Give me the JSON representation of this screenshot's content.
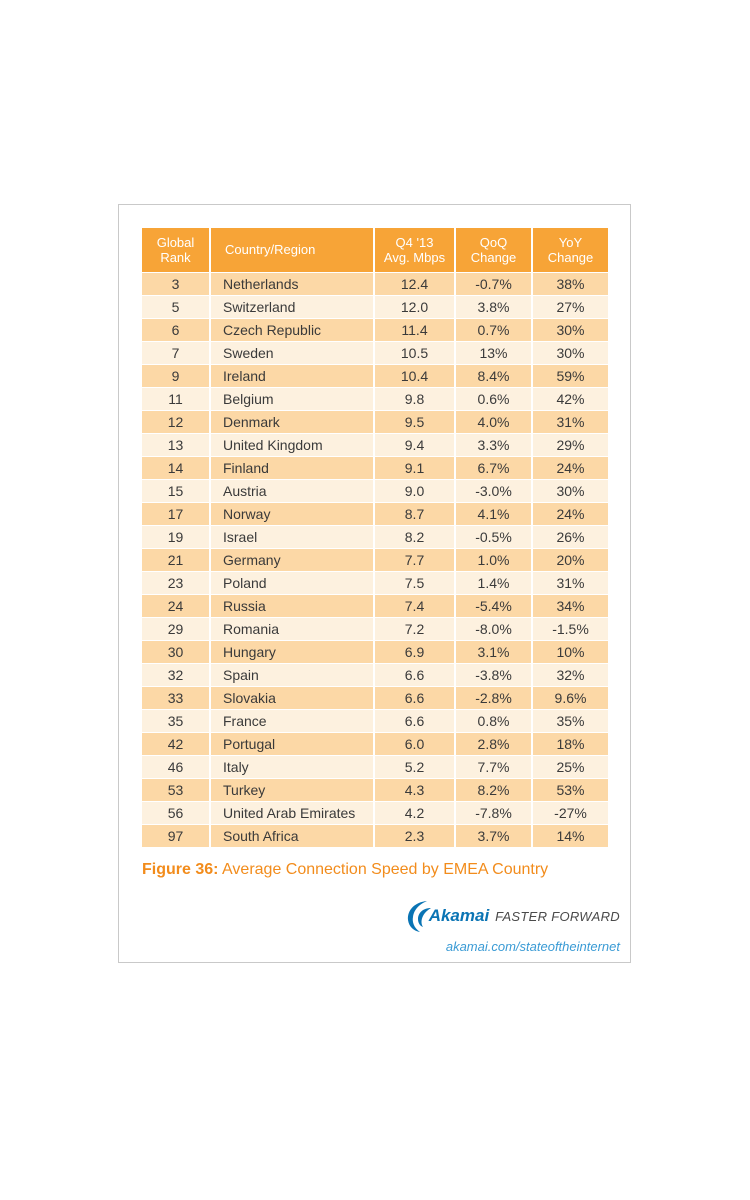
{
  "chart_data": {
    "type": "table",
    "headers": [
      [
        "Global",
        "Rank"
      ],
      [
        "Country/Region"
      ],
      [
        "Q4 '13",
        "Avg. Mbps"
      ],
      [
        "QoQ",
        "Change"
      ],
      [
        "YoY",
        "Change"
      ]
    ],
    "rows": [
      [
        "3",
        "Netherlands",
        "12.4",
        "-0.7%",
        "38%"
      ],
      [
        "5",
        "Switzerland",
        "12.0",
        "3.8%",
        "27%"
      ],
      [
        "6",
        "Czech Republic",
        "11.4",
        "0.7%",
        "30%"
      ],
      [
        "7",
        "Sweden",
        "10.5",
        "13%",
        "30%"
      ],
      [
        "9",
        "Ireland",
        "10.4",
        "8.4%",
        "59%"
      ],
      [
        "11",
        "Belgium",
        "9.8",
        "0.6%",
        "42%"
      ],
      [
        "12",
        "Denmark",
        "9.5",
        "4.0%",
        "31%"
      ],
      [
        "13",
        "United Kingdom",
        "9.4",
        "3.3%",
        "29%"
      ],
      [
        "14",
        "Finland",
        "9.1",
        "6.7%",
        "24%"
      ],
      [
        "15",
        "Austria",
        "9.0",
        "-3.0%",
        "30%"
      ],
      [
        "17",
        "Norway",
        "8.7",
        "4.1%",
        "24%"
      ],
      [
        "19",
        "Israel",
        "8.2",
        "-0.5%",
        "26%"
      ],
      [
        "21",
        "Germany",
        "7.7",
        "1.0%",
        "20%"
      ],
      [
        "23",
        "Poland",
        "7.5",
        "1.4%",
        "31%"
      ],
      [
        "24",
        "Russia",
        "7.4",
        "-5.4%",
        "34%"
      ],
      [
        "29",
        "Romania",
        "7.2",
        "-8.0%",
        "-1.5%"
      ],
      [
        "30",
        "Hungary",
        "6.9",
        "3.1%",
        "10%"
      ],
      [
        "32",
        "Spain",
        "6.6",
        "-3.8%",
        "32%"
      ],
      [
        "33",
        "Slovakia",
        "6.6",
        "-2.8%",
        "9.6%"
      ],
      [
        "35",
        "France",
        "6.6",
        "0.8%",
        "35%"
      ],
      [
        "42",
        "Portugal",
        "6.0",
        "2.8%",
        "18%"
      ],
      [
        "46",
        "Italy",
        "5.2",
        "7.7%",
        "25%"
      ],
      [
        "53",
        "Turkey",
        "4.3",
        "8.2%",
        "53%"
      ],
      [
        "56",
        "United Arab Emirates",
        "4.2",
        "-7.8%",
        "-27%"
      ],
      [
        "97",
        "South Africa",
        "2.3",
        "3.7%",
        "14%"
      ]
    ]
  },
  "caption": {
    "prefix": "Figure 36:",
    "text": "Average Connection Speed by EMEA Country"
  },
  "branding": {
    "logo_icon": "akamai-swoosh-icon",
    "name": "Akamai",
    "tagline": "FASTER FORWARD",
    "url": "akamai.com/stateoftheinternet"
  },
  "colors": {
    "header": "#f7a437",
    "row_dark": "#fcd8a6",
    "row_light": "#fdf1df",
    "caption": "#f28c1c",
    "brand_blue": "#0a74b4"
  }
}
